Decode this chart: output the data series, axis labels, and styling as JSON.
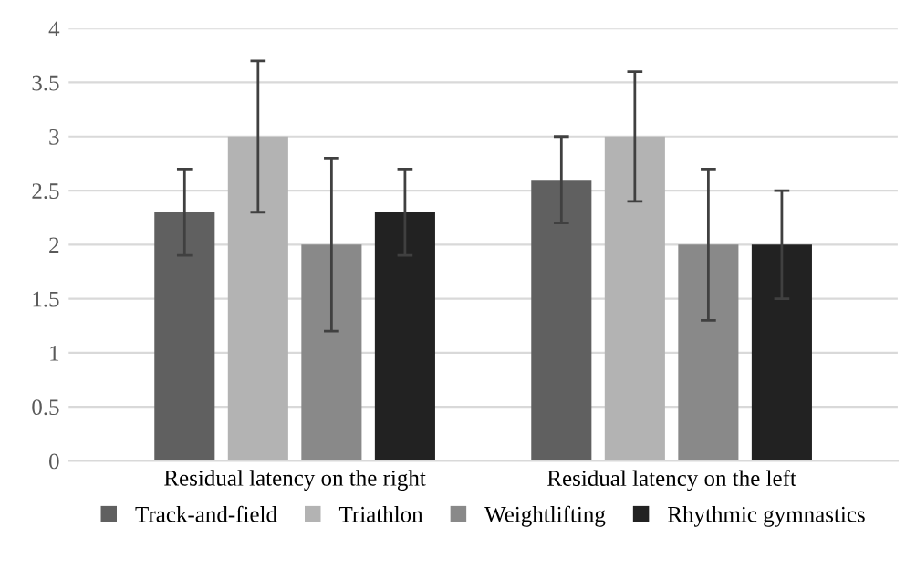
{
  "chart_data": {
    "type": "bar",
    "categories": [
      "Residual latency on the right",
      "Residual latency on the left"
    ],
    "series": [
      {
        "name": "Track-and-field",
        "color": "#606060",
        "values": [
          2.3,
          2.6
        ],
        "errors": [
          0.4,
          0.4
        ]
      },
      {
        "name": "Triathlon",
        "color": "#b3b3b3",
        "values": [
          3,
          3
        ],
        "errors": [
          0.7,
          0.6
        ]
      },
      {
        "name": "Weightlifting",
        "color": "#898989",
        "values": [
          2,
          2
        ],
        "errors": [
          0.8,
          0.7
        ]
      },
      {
        "name": "Rhythmic gymnastics",
        "color": "#222222",
        "values": [
          2.3,
          2
        ],
        "errors": [
          0.4,
          0.5
        ]
      }
    ],
    "ylim": [
      0,
      4
    ],
    "yticks": [
      0,
      0.5,
      1,
      1.5,
      2,
      2.5,
      3,
      3.5,
      4
    ],
    "grid": "y",
    "legend": "bottom"
  }
}
